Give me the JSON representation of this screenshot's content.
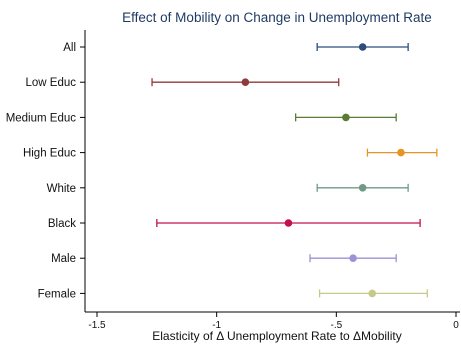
{
  "chart_data": {
    "type": "scatter",
    "title": "Effect of Mobility on Change in Unemployment Rate",
    "xlabel": "Elasticity of Δ Unemployment Rate to ΔMobility",
    "ylabel": "",
    "xlim": [
      -1.5,
      0
    ],
    "xticks": [
      -1.5,
      -1,
      -0.5,
      0
    ],
    "xtick_labels": [
      "-1.5",
      "-1",
      "-.5",
      "0"
    ],
    "grid": false,
    "error_bars": true,
    "series": [
      {
        "category": "All",
        "estimate": -0.39,
        "ci_low": -0.58,
        "ci_high": -0.2,
        "color": "#2c4d7a"
      },
      {
        "category": "Low Educ",
        "estimate": -0.88,
        "ci_low": -1.27,
        "ci_high": -0.49,
        "color": "#8f3a3d"
      },
      {
        "category": "Medium Educ",
        "estimate": -0.46,
        "ci_low": -0.67,
        "ci_high": -0.25,
        "color": "#5a7a35"
      },
      {
        "category": "High Educ",
        "estimate": -0.23,
        "ci_low": -0.37,
        "ci_high": -0.08,
        "color": "#e69524"
      },
      {
        "category": "White",
        "estimate": -0.39,
        "ci_low": -0.58,
        "ci_high": -0.2,
        "color": "#6f9a86"
      },
      {
        "category": "Black",
        "estimate": -0.7,
        "ci_low": -1.25,
        "ci_high": -0.15,
        "color": "#c4114a"
      },
      {
        "category": "Male",
        "estimate": -0.43,
        "ci_low": -0.61,
        "ci_high": -0.25,
        "color": "#9b93d8"
      },
      {
        "category": "Female",
        "estimate": -0.35,
        "ci_low": -0.57,
        "ci_high": -0.12,
        "color": "#c6c98a"
      }
    ]
  }
}
